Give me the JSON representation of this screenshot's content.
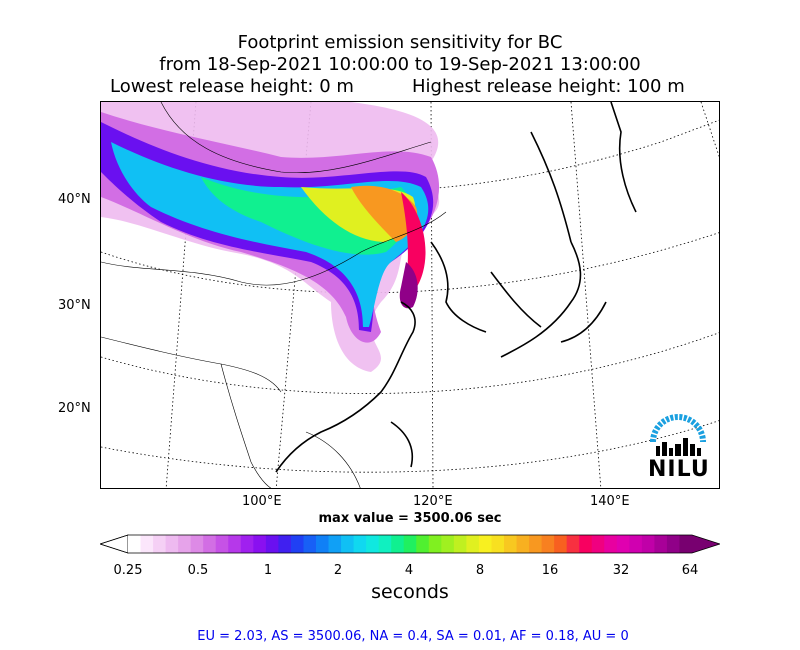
{
  "title": {
    "line1": "Footprint emission sensitivity for BC",
    "line2": "from 18-Sep-2021 10:00:00 to 19-Sep-2021 13:00:00",
    "lowest": "Lowest release height: 0 m",
    "highest": "Highest release height: 100 m"
  },
  "axes": {
    "lat_labels": [
      "40°N",
      "30°N",
      "20°N"
    ],
    "lon_labels": [
      "100°E",
      "120°E",
      "140°E"
    ]
  },
  "max_value": "max value = 3500.06 sec",
  "colorbar": {
    "ticks": [
      "0.25",
      "0.5",
      "1",
      "2",
      "4",
      "8",
      "16",
      "32",
      "64"
    ],
    "label": "seconds",
    "colors": [
      "#ffffff",
      "#fbe6fb",
      "#f5d0f5",
      "#eebaf0",
      "#e6a3ea",
      "#dd8ae6",
      "#d26ee4",
      "#c652e6",
      "#b638ea",
      "#a020ef",
      "#8a10f0",
      "#6a10f0",
      "#4020f0",
      "#2040f4",
      "#1860f6",
      "#1080f6",
      "#10a0f6",
      "#10c0f4",
      "#10d8f0",
      "#10e8e0",
      "#10f0c0",
      "#10f090",
      "#20f060",
      "#50f030",
      "#80f020",
      "#a0f020",
      "#c0f020",
      "#e0f020",
      "#f8f020",
      "#f8e020",
      "#f8c820",
      "#f8b020",
      "#f89820",
      "#f88020",
      "#f86020",
      "#f83040",
      "#f80060",
      "#f00080",
      "#e800a0",
      "#e000b0",
      "#d000b0",
      "#c000a8",
      "#a80098",
      "#900088",
      "#780070"
    ],
    "arrow_low": "#ffffff",
    "arrow_high": "#780070"
  },
  "logo": {
    "text": "NILU",
    "arc_color": "#1aa0e0"
  },
  "footer": "EU = 2.03,  AS = 3500.06,  NA = 0.4,  SA = 0.01,  AF = 0.18,  AU = 0"
}
